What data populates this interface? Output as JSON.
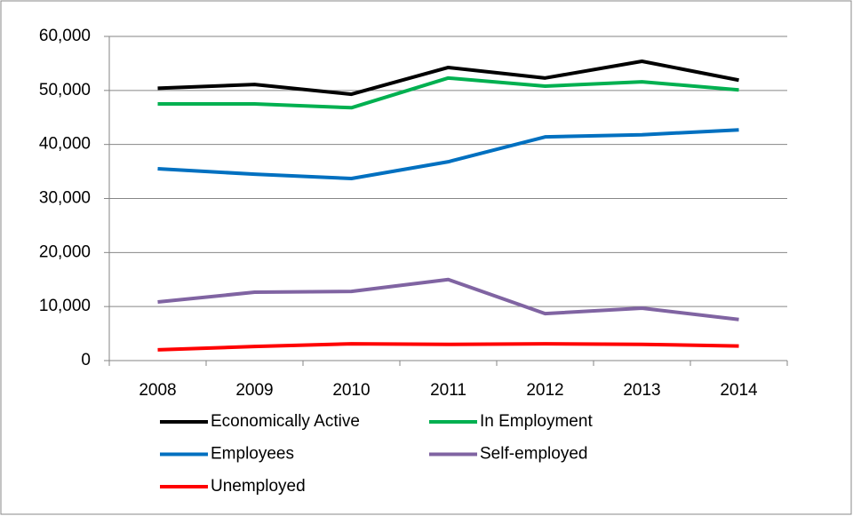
{
  "chart_data": {
    "type": "line",
    "categories": [
      "2008",
      "2009",
      "2010",
      "2011",
      "2012",
      "2013",
      "2014"
    ],
    "ylim": [
      0,
      60000
    ],
    "yticks": [
      0,
      {
        "value": 10000,
        "label": "10,000"
      },
      {
        "value": 20000,
        "label": "20,000"
      },
      {
        "value": 30000,
        "label": "30,000"
      },
      {
        "value": 40000,
        "label": "40,000"
      },
      {
        "value": 50000,
        "label": "50,000"
      },
      {
        "value": 60000,
        "label": "60,000"
      }
    ],
    "grid": true,
    "legend": "bottom",
    "series": [
      {
        "name": "Economically Active",
        "color": "#000000",
        "values": [
          50400,
          51100,
          49300,
          54250,
          52300,
          55400,
          51900
        ]
      },
      {
        "name": "In Employment",
        "color": "#00b050",
        "values": [
          47500,
          47500,
          46800,
          52300,
          50800,
          51600,
          50100
        ]
      },
      {
        "name": "Employees",
        "color": "#0070c0",
        "values": [
          35500,
          34500,
          33700,
          36800,
          41400,
          41800,
          42700
        ]
      },
      {
        "name": "Self-employed",
        "color": "#8064a2",
        "values": [
          10850,
          12650,
          12800,
          15000,
          8700,
          9700,
          7600
        ]
      },
      {
        "name": "Unemployed",
        "color": "#ff0000",
        "values": [
          2000,
          2600,
          3100,
          3000,
          3100,
          3000,
          2700
        ]
      }
    ]
  }
}
